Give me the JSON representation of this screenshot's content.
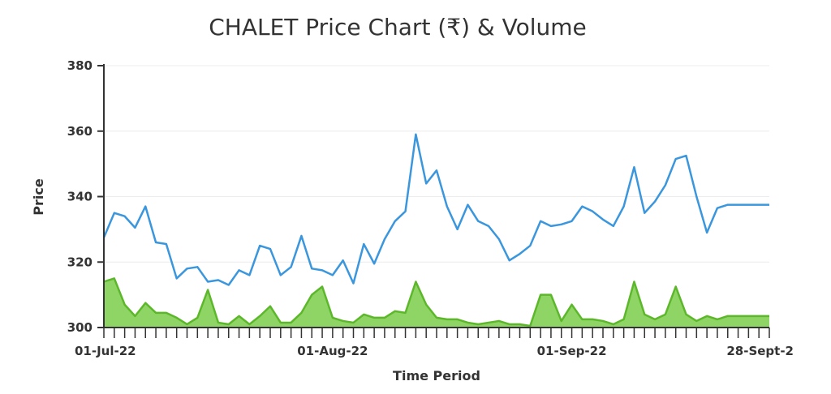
{
  "chart_data": {
    "type": "line",
    "title": "CHALET Price Chart (₹) & Volume",
    "xlabel": "Time Period",
    "ylabel": "Price",
    "ylim": [
      300,
      380
    ],
    "yticks": [
      "380",
      "360",
      "340",
      "320",
      "300"
    ],
    "xtick_labels": [
      {
        "index": 0,
        "label": "01-Jul-22"
      },
      {
        "index": 22,
        "label": "01-Aug-22"
      },
      {
        "index": 45,
        "label": "01-Sep-22"
      },
      {
        "index": 64,
        "label": "28-Sept-2"
      }
    ],
    "grid": true,
    "series": [
      {
        "color": "#3a96dd",
        "values": [
          327.5,
          335,
          334,
          330.5,
          337,
          326,
          325.5,
          315,
          318,
          318.5,
          314,
          314.5,
          313,
          317.5,
          316,
          325,
          324,
          316,
          318.5,
          328,
          318,
          317.5,
          316,
          320.5,
          313.5,
          325.5,
          319.5,
          327,
          332.5,
          335.5,
          359,
          344,
          348,
          337,
          330,
          337.5,
          332.5,
          331,
          327,
          320.5,
          322.5,
          325,
          332.5,
          331,
          331.5,
          332.5,
          337,
          335.5,
          333,
          331,
          337,
          349,
          335,
          338.5,
          343.5,
          351.5,
          352.5,
          340,
          329,
          336.5,
          337.5,
          337.5,
          337.5,
          337.5,
          337.5
        ]
      },
      {
        "type": "area",
        "color": "#5cb82a",
        "fill": "#8fd566",
        "values": [
          314,
          315,
          307,
          303.5,
          307.5,
          304.5,
          304.5,
          303,
          301,
          303,
          311.5,
          301.5,
          301,
          303.5,
          301,
          303.5,
          306.5,
          301.5,
          301.5,
          304.5,
          310,
          312.5,
          303,
          302,
          301.5,
          304,
          303,
          303,
          305,
          304.5,
          314,
          307,
          303,
          302.5,
          302.5,
          301.5,
          301,
          301.5,
          302,
          301,
          301,
          300.5,
          310,
          310,
          302,
          307,
          302.5,
          302.5,
          302,
          301,
          302.5,
          314,
          304,
          302.5,
          304,
          312.5,
          304,
          302,
          303.5,
          302.5,
          303.5,
          303.5,
          303.5,
          303.5,
          303.5
        ]
      }
    ]
  }
}
